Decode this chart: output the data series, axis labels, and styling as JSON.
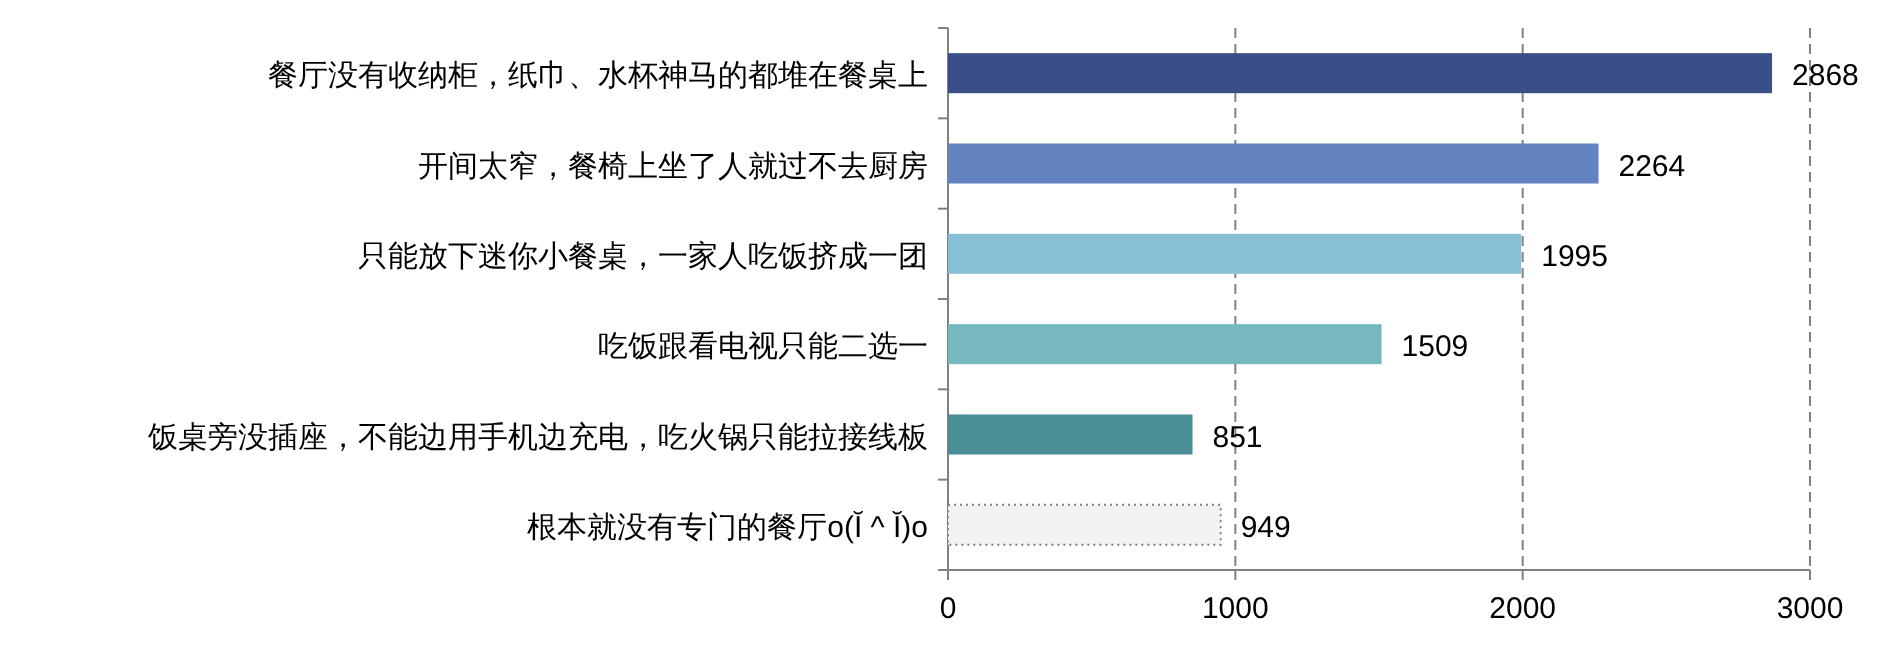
{
  "chart_data": {
    "type": "bar",
    "orientation": "horizontal",
    "categories": [
      "餐厅没有收纳柜，纸巾、水杯神马的都堆在餐桌上",
      "开间太窄，餐椅上坐了人就过不去厨房",
      "只能放下迷你小餐桌，一家人吃饭挤成一团",
      "吃饭跟看电视只能二选一",
      "饭桌旁没插座，不能边用手机边充电，吃火锅只能拉接线板",
      "根本就没有专门的餐厅o(Ĭ ^ Ĭ)o"
    ],
    "values": [
      2868,
      2264,
      1995,
      1509,
      851,
      949
    ],
    "colors": [
      "#3a4e8a",
      "#6283bf",
      "#88c1d6",
      "#76b8bd",
      "#4b8e96",
      "#f2f2f2"
    ],
    "xlim": [
      0,
      3000
    ],
    "xticks": [
      0,
      1000,
      2000,
      3000
    ],
    "grid": "x",
    "data_labels": true
  }
}
